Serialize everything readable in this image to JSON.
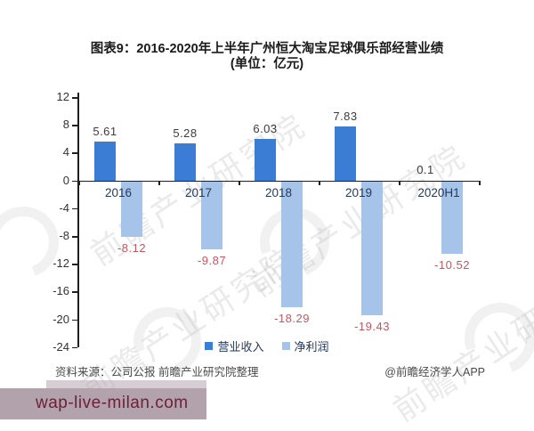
{
  "title": {
    "line1": "图表9：2016-2020年上半年广州恒大淘宝足球俱乐部经营业绩",
    "line2": "(单位：亿元)"
  },
  "chart_data": {
    "type": "bar",
    "categories": [
      "2016",
      "2017",
      "2018",
      "2019",
      "2020H1"
    ],
    "series": [
      {
        "name": "营业收入",
        "color": "#3b7cd5",
        "values": [
          5.61,
          5.28,
          6.03,
          7.83,
          0.1
        ]
      },
      {
        "name": "净利润",
        "color": "#a6c4e9",
        "values": [
          -8.12,
          -9.87,
          -18.29,
          -19.43,
          -10.52
        ]
      }
    ],
    "title": "图表9：2016-2020年上半年广州恒大淘宝足球俱乐部经营业绩",
    "unit_label": "(单位：亿元)",
    "xlabel": "",
    "ylabel": "",
    "ylim": [
      -24,
      12
    ],
    "yticks": [
      12,
      8,
      4,
      0,
      -4,
      -8,
      -12,
      -16,
      -20,
      -24
    ],
    "grid": false,
    "legend_position": "bottom",
    "label_colors": {
      "positive": "#3c3c3c",
      "negative": "#c45762"
    }
  },
  "watermark": {
    "text": "前瞻产业研究院"
  },
  "footer": {
    "source": "资料来源：公司公报 前瞻产业研究院整理",
    "credit": "@前瞻经济学人APP"
  },
  "overlay": {
    "text": "wap-live-milan.com"
  }
}
